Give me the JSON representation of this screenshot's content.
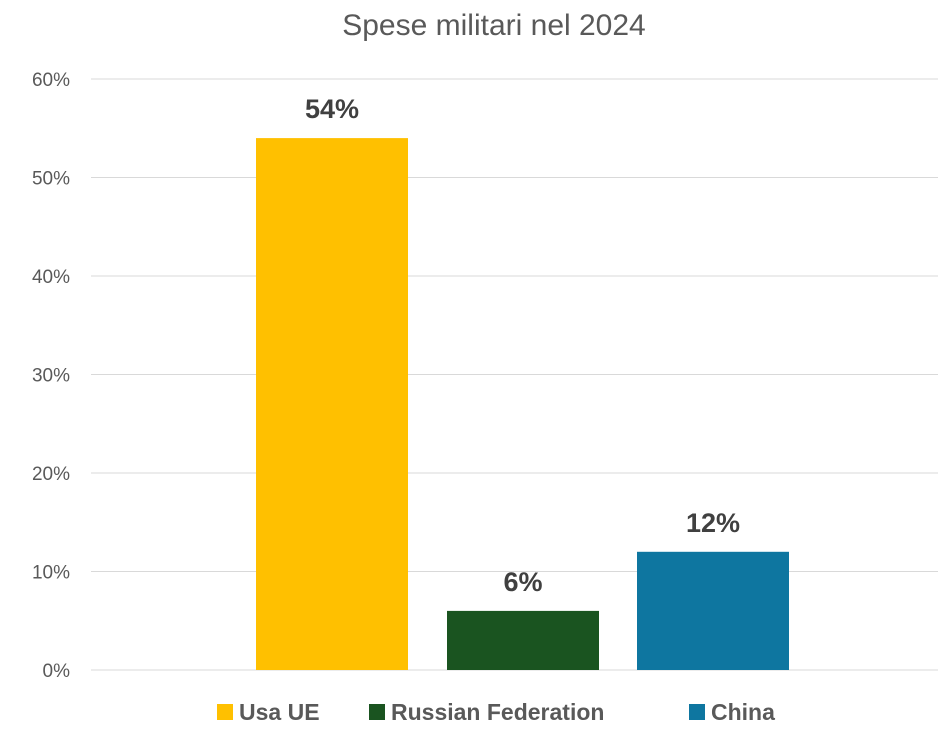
{
  "chart_data": {
    "type": "bar",
    "title": "Spese militari nel 2024",
    "categories": [
      "Usa UE",
      "Russian Federation",
      "China"
    ],
    "values": [
      54,
      6,
      12
    ],
    "data_labels": [
      "54%",
      "6%",
      "12%"
    ],
    "colors": [
      "#FFC000",
      "#1A5420",
      "#0E76A0"
    ],
    "ylim": [
      0,
      60
    ],
    "y_ticks": [
      0,
      10,
      20,
      30,
      40,
      50,
      60
    ],
    "y_tick_labels": [
      "0%",
      "10%",
      "20%",
      "30%",
      "40%",
      "50%",
      "60%"
    ],
    "xlabel": "",
    "ylabel": "",
    "grid": true,
    "legend": {
      "position": "bottom",
      "entries": [
        "Usa UE",
        "Russian Federation",
        "China"
      ]
    }
  }
}
